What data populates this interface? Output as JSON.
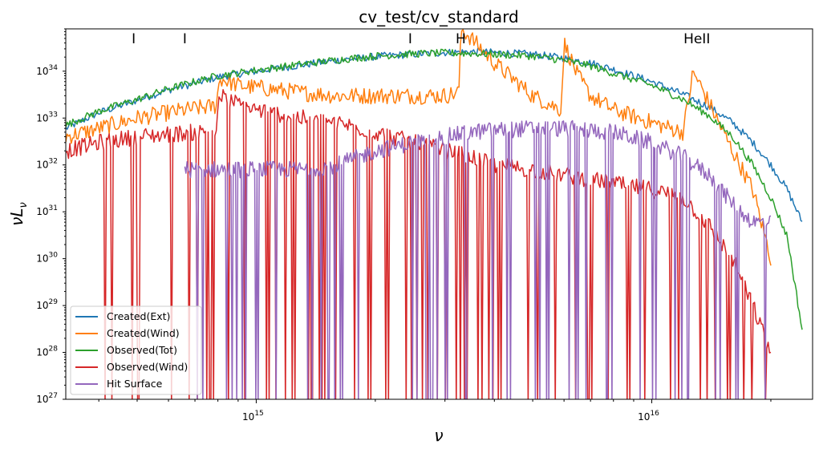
{
  "chart_data": {
    "type": "line",
    "title": "cv_test/cv_standard",
    "xlabel": "ν",
    "ylabel": "νL",
    "ylabel_sub": "ν",
    "xscale": "log",
    "yscale": "log",
    "xlim": [
      330000000000000.0,
      2.55e+16
    ],
    "ylim": [
      1e+27,
      8e+34
    ],
    "xticks": [
      {
        "base": "10",
        "exp": "15",
        "value": 1000000000000000.0
      },
      {
        "base": "10",
        "exp": "16",
        "value": 1e+16
      }
    ],
    "yticks": [
      {
        "base": "10",
        "exp": "27",
        "value": 1e+27
      },
      {
        "base": "10",
        "exp": "28",
        "value": 1e+28
      },
      {
        "base": "10",
        "exp": "29",
        "value": 1e+29
      },
      {
        "base": "10",
        "exp": "30",
        "value": 1e+30
      },
      {
        "base": "10",
        "exp": "31",
        "value": 1e+31
      },
      {
        "base": "10",
        "exp": "32",
        "value": 1e+32
      },
      {
        "base": "10",
        "exp": "33",
        "value": 1e+33
      },
      {
        "base": "10",
        "exp": "34",
        "value": 1e+34
      }
    ],
    "annotations": [
      {
        "text": "I",
        "x": 490000000000000.0
      },
      {
        "text": "I",
        "x": 660000000000000.0
      },
      {
        "text": "I",
        "x": 2450000000000000.0
      },
      {
        "text": "H",
        "x": 3290000000000000.0
      },
      {
        "text": "HeII",
        "x": 1.3e+16
      }
    ],
    "legend_position": "lower-left",
    "series": [
      {
        "name": "Created(Ext)",
        "color": "#1f77b4",
        "x": [
          330000000000000.0,
          400000000000000.0,
          500000000000000.0,
          600000000000000.0,
          700000000000000.0,
          800000000000000.0,
          1000000000000000.0,
          1300000000000000.0,
          1600000000000000.0,
          2000000000000000.0,
          2500000000000000.0,
          3000000000000000.0,
          3500000000000000.0,
          4000000000000000.0,
          5000000000000000.0,
          6000000000000000.0,
          7000000000000000.0,
          8000000000000000.0,
          1e+16,
          1.2e+16,
          1.4e+16,
          1.6e+16,
          1.8e+16,
          2e+16,
          2.2e+16,
          2.4e+16
        ],
        "y": [
          6e+32,
          1.3e+33,
          2.4e+33,
          4e+33,
          5.5e+33,
          7.5e+33,
          1e+34,
          1.35e+34,
          1.7e+34,
          2.05e+34,
          2.3e+34,
          2.5e+34,
          2.6e+34,
          2.5e+34,
          2.3e+34,
          1.9e+34,
          1.5e+34,
          1.1e+34,
          6e+33,
          3.2e+33,
          1.7e+33,
          8e+32,
          3e+32,
          1e+32,
          3e+31,
          6e+30
        ]
      },
      {
        "name": "Created(Wind)",
        "color": "#ff7f0e",
        "x": [
          330000000000000.0,
          400000000000000.0,
          500000000000000.0,
          600000000000000.0,
          700000000000000.0,
          790000000000000.0,
          810000000000000.0,
          900000000000000.0,
          1000000000000000.0,
          1300000000000000.0,
          1600000000000000.0,
          2000000000000000.0,
          2500000000000000.0,
          3000000000000000.0,
          3250000000000000.0,
          3300000000000000.0,
          3500000000000000.0,
          4000000000000000.0,
          5000000000000000.0,
          5900000000000000.0,
          6000000000000000.0,
          6500000000000000.0,
          7000000000000000.0,
          8000000000000000.0,
          1e+16,
          1.2e+16,
          1.27e+16,
          1.3e+16,
          1.4e+16,
          1.6e+16,
          1.8e+16,
          2e+16
        ],
        "y": [
          4e+32,
          6e+32,
          1e+33,
          1.3e+33,
          1.6e+33,
          1.8e+33,
          7e+33,
          5e+33,
          4.5e+33,
          3.5e+33,
          3e+33,
          3e+33,
          3e+33,
          3e+33,
          3.5e+33,
          8e+34,
          5e+34,
          1.5e+34,
          3e+33,
          1.5e+33,
          4e+34,
          8e+33,
          3e+33,
          1.5e+33,
          8e+32,
          5e+32,
          9e+33,
          7e+33,
          2e+33,
          2e+32,
          3e+31,
          1e+30
        ]
      },
      {
        "name": "Observed(Tot)",
        "color": "#2ca02c",
        "x": [
          330000000000000.0,
          400000000000000.0,
          500000000000000.0,
          600000000000000.0,
          700000000000000.0,
          800000000000000.0,
          1000000000000000.0,
          1300000000000000.0,
          1600000000000000.0,
          2000000000000000.0,
          2500000000000000.0,
          3000000000000000.0,
          3500000000000000.0,
          4000000000000000.0,
          5000000000000000.0,
          6000000000000000.0,
          7000000000000000.0,
          8000000000000000.0,
          1e+16,
          1.2e+16,
          1.4e+16,
          1.6e+16,
          1.8e+16,
          2e+16,
          2.2e+16,
          2.4e+16
        ],
        "y": [
          7e+32,
          1.4e+33,
          2.5e+33,
          4.2e+33,
          6e+33,
          8e+33,
          1.05e+34,
          1.4e+34,
          1.75e+34,
          2.1e+34,
          2.35e+34,
          2.45e+34,
          2.4e+34,
          2.3e+34,
          2.1e+34,
          1.7e+34,
          1.3e+34,
          9e+33,
          5e+33,
          2.5e+33,
          1.1e+33,
          4e+32,
          1e+32,
          2e+31,
          3e+30,
          3e+28
        ]
      },
      {
        "name": "Observed(Wind)",
        "color": "#d62728",
        "x": [
          330000000000000.0,
          400000000000000.0,
          500000000000000.0,
          600000000000000.0,
          700000000000000.0,
          790000000000000.0,
          810000000000000.0,
          900000000000000.0,
          1000000000000000.0,
          1300000000000000.0,
          1600000000000000.0,
          2000000000000000.0,
          2500000000000000.0,
          3000000000000000.0,
          3500000000000000.0,
          4000000000000000.0,
          5000000000000000.0,
          6000000000000000.0,
          7000000000000000.0,
          8000000000000000.0,
          1e+16,
          1.2e+16,
          1.4e+16,
          1.6e+16,
          1.8e+16,
          2e+16
        ],
        "y": [
          2e+32,
          3e+32,
          4e+32,
          4.5e+32,
          5e+32,
          5e+32,
          3e+33,
          2e+33,
          1.5e+33,
          1e+33,
          8e+32,
          5e+32,
          3e+32,
          2e+32,
          1.5e+32,
          1e+32,
          8e+31,
          6e+31,
          5e+31,
          4e+31,
          3e+31,
          2e+31,
          5e+30,
          1e+30,
          1e+29,
          1e+28
        ]
      },
      {
        "name": "Hit Surface",
        "color": "#9467bd",
        "x": [
          660000000000000.0,
          800000000000000.0,
          1000000000000000.0,
          1300000000000000.0,
          1600000000000000.0,
          2000000000000000.0,
          2500000000000000.0,
          3000000000000000.0,
          3500000000000000.0,
          4000000000000000.0,
          5000000000000000.0,
          6000000000000000.0,
          7000000000000000.0,
          8000000000000000.0,
          1e+16,
          1.2e+16,
          1.4e+16,
          1.6e+16,
          1.8e+16,
          2e+16
        ],
        "y": [
          8e+31,
          8e+31,
          8e+31,
          8e+31,
          1e+32,
          2e+32,
          3e+32,
          4e+32,
          5e+32,
          5.5e+32,
          6e+32,
          6e+32,
          5.5e+32,
          5e+32,
          3e+32,
          1.5e+32,
          6e+31,
          1.5e+31,
          6e+30,
          6e+30
        ]
      }
    ]
  }
}
